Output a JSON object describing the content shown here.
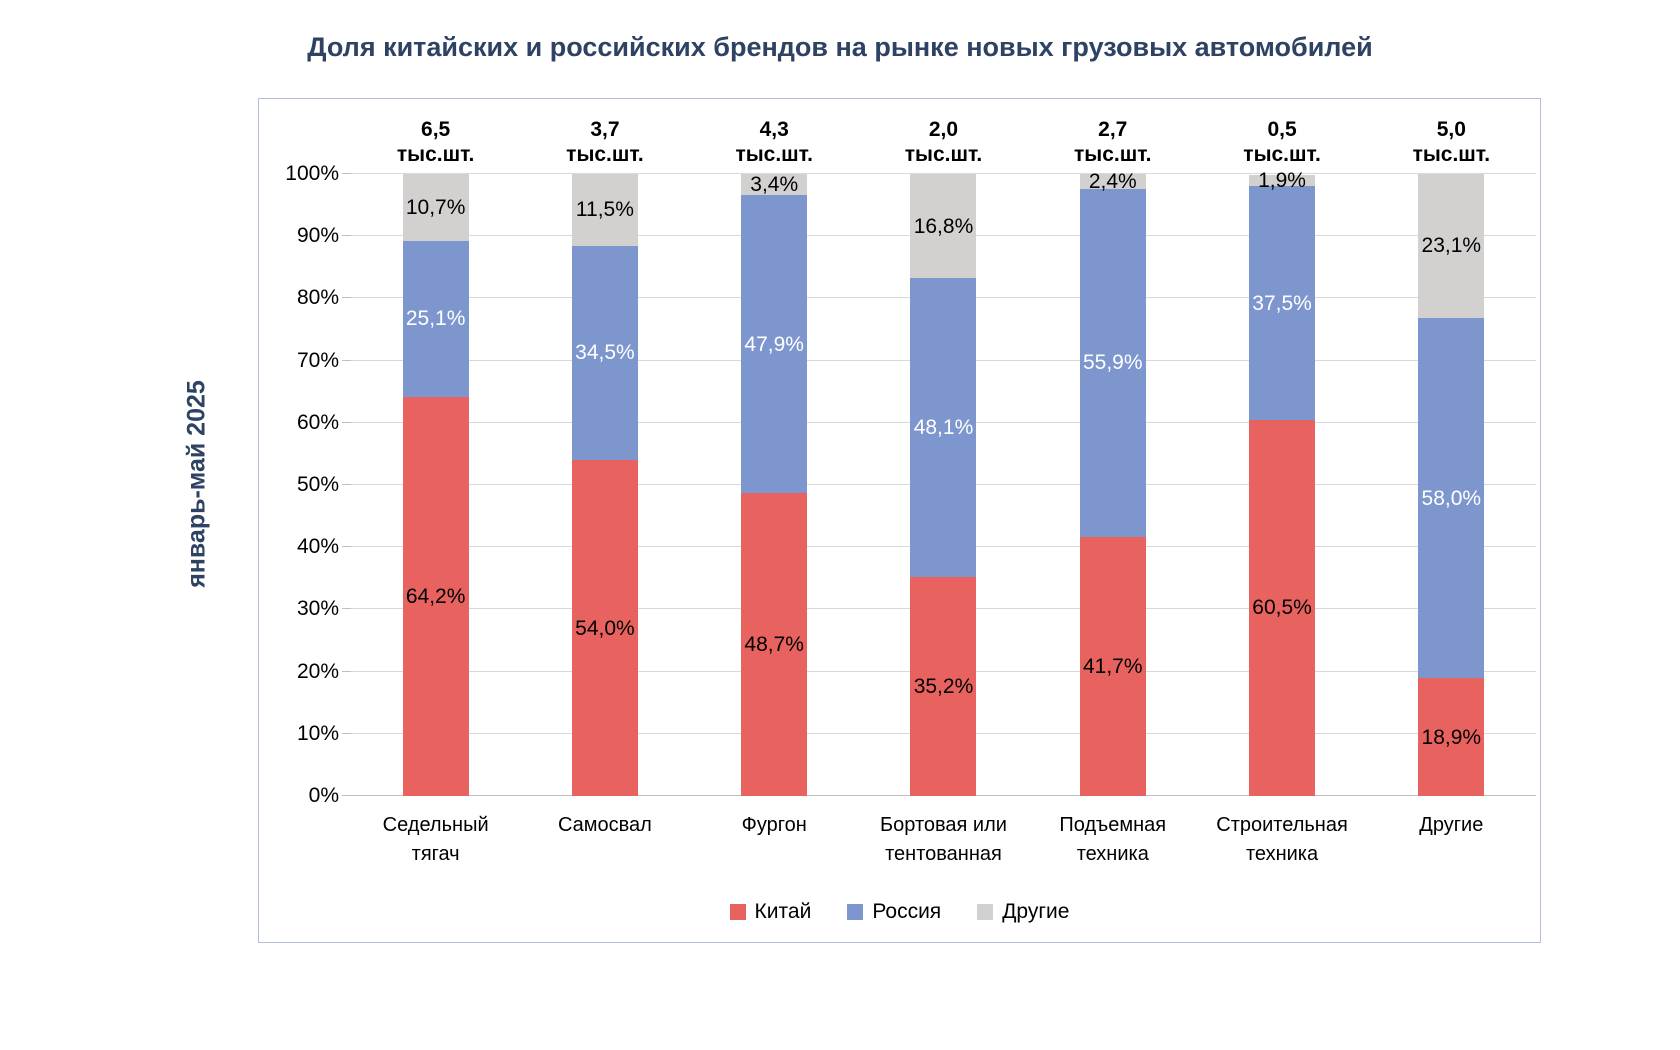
{
  "title": "Доля китайских и российских брендов на рынке новых грузовых автомобилей",
  "y_axis_label": "январь-май 2025",
  "chart_data": {
    "type": "bar",
    "stacked": true,
    "title": "Доля китайских и российских брендов на рынке новых грузовых автомобилей",
    "xlabel": "",
    "ylabel": "январь-май 2025",
    "ylim": [
      0,
      100
    ],
    "grid": true,
    "legend_position": "bottom",
    "y_ticks": [
      "0%",
      "10%",
      "20%",
      "30%",
      "40%",
      "50%",
      "60%",
      "70%",
      "80%",
      "90%",
      "100%"
    ],
    "categories": [
      "Седельный тягач",
      "Самосвал",
      "Фургон",
      "Бортовая или тентованная",
      "Подъемная техника",
      "Строительная техника",
      "Другие"
    ],
    "totals": [
      "6,5",
      "3,7",
      "4,3",
      "2,0",
      "2,7",
      "0,5",
      "5,0"
    ],
    "totals_unit": "тыс.шт.",
    "series": [
      {
        "key": "china",
        "name": "Китай",
        "color": "#e8635f",
        "label_color": "#000000",
        "values": [
          64.2,
          54.0,
          48.7,
          35.2,
          41.7,
          60.5,
          18.9
        ],
        "labels": [
          "64,2%",
          "54,0%",
          "48,7%",
          "35,2%",
          "41,7%",
          "60,5%",
          "18,9%"
        ]
      },
      {
        "key": "russia",
        "name": "Россия",
        "color": "#7d96ce",
        "label_color": "#ffffff",
        "values": [
          25.1,
          34.5,
          47.9,
          48.1,
          55.9,
          37.5,
          58.0
        ],
        "labels": [
          "25,1%",
          "34,5%",
          "47,9%",
          "48,1%",
          "55,9%",
          "37,5%",
          "58,0%"
        ]
      },
      {
        "key": "others",
        "name": "Другие",
        "color": "#d3d0d0",
        "label_color": "#000000",
        "values": [
          10.7,
          11.5,
          3.4,
          16.8,
          2.4,
          1.9,
          23.1
        ],
        "labels": [
          "10,7%",
          "11,5%",
          "3,4%",
          "16,8%",
          "2,4%",
          "1,9%",
          "23,1%"
        ]
      }
    ]
  }
}
